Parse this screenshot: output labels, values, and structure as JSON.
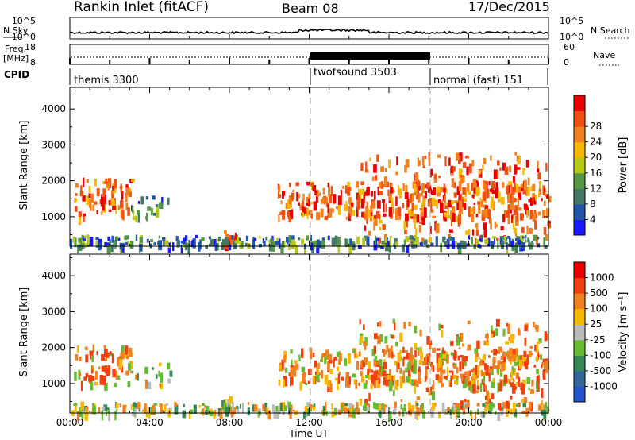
{
  "header": {
    "site": "Rankin Inlet (fitACF)",
    "beam": "Beam 08",
    "date": "17/Dec/2015"
  },
  "strips": {
    "nsky_label": "N.Sky",
    "nsky_ticks": [
      "10^5",
      "10^0"
    ],
    "nsearch_label": "N.Search",
    "nsearch_ticks": [
      "10^5",
      "10^0"
    ],
    "freq_label_1": "Freq.",
    "freq_label_2": "[MHz]",
    "freq_ticks": [
      "18",
      "8"
    ],
    "nave_label": "Nave",
    "nave_ticks": [
      "60",
      "0"
    ],
    "cpid_label": "CPID",
    "cpid_segments": [
      {
        "label": "themis 3300",
        "start_hour": 0,
        "end_hour": 11.9
      },
      {
        "label": "twofsound 3503",
        "start_hour": 11.9,
        "end_hour": 18
      },
      {
        "label": "normal (fast) 151",
        "start_hour": 18,
        "end_hour": 24
      }
    ]
  },
  "chart_data": [
    {
      "type": "heatmap",
      "title": "",
      "xlabel": "Time UT",
      "ylabel": "Slant Range [km]",
      "x_ticks": [
        "00:00",
        "04:00",
        "08:00",
        "12:00",
        "16:00",
        "20:00",
        "00:00"
      ],
      "xlim_hours": [
        0,
        24
      ],
      "y_ticks": [
        1000,
        2000,
        3000,
        4000
      ],
      "ylim": [
        180,
        4600
      ],
      "colorbar": {
        "label": "Power [dB]",
        "ticks": [
          "4",
          "8",
          "12",
          "16",
          "20",
          "24",
          "28"
        ],
        "colors": [
          "#1a1aff",
          "#2255aa",
          "#447766",
          "#559944",
          "#b8c818",
          "#f8b800",
          "#f08020",
          "#f05010",
          "#e80000"
        ]
      },
      "echo_bands": [
        {
          "start_hour": 0.2,
          "end_hour": 3.1,
          "range_km": [
            1000,
            2100
          ],
          "level": "strong"
        },
        {
          "start_hour": 3.0,
          "end_hour": 5.0,
          "range_km": [
            1000,
            1600
          ],
          "level": "weak"
        },
        {
          "start_hour": 7.5,
          "end_hour": 8.3,
          "range_km": [
            300,
            650
          ],
          "level": "strong"
        },
        {
          "start_hour": 10.4,
          "end_hour": 24,
          "range_km": [
            1000,
            2000
          ],
          "level": "strong"
        },
        {
          "start_hour": 14.5,
          "end_hour": 24,
          "range_km": [
            400,
            2800
          ],
          "level": "strong"
        },
        {
          "start_hour": 0,
          "end_hour": 24,
          "range_km": [
            200,
            500
          ],
          "level": "weak"
        }
      ]
    },
    {
      "type": "heatmap",
      "title": "",
      "xlabel": "Time UT",
      "ylabel": "Slant Range [km]",
      "x_ticks": [
        "00:00",
        "04:00",
        "08:00",
        "12:00",
        "16:00",
        "20:00",
        "00:00"
      ],
      "xlim_hours": [
        0,
        24
      ],
      "y_ticks": [
        1000,
        2000,
        3000,
        4000
      ],
      "ylim": [
        180,
        4600
      ],
      "colorbar": {
        "label": "Velocity [m s⁻¹]",
        "ticks": [
          "1000",
          "500",
          "100",
          "25",
          "-25",
          "-100",
          "-500",
          "-1000"
        ],
        "colors": [
          "#2255cc",
          "#336699",
          "#338855",
          "#66bb33",
          "#bbbbbb",
          "#f8b800",
          "#f08020",
          "#f04010",
          "#e80000"
        ]
      },
      "echo_bands": [
        {
          "start_hour": 0.2,
          "end_hour": 3.1,
          "range_km": [
            1000,
            2100
          ],
          "level": "receding"
        },
        {
          "start_hour": 3.0,
          "end_hour": 5.0,
          "range_km": [
            1000,
            1600
          ],
          "level": "approaching"
        },
        {
          "start_hour": 7.5,
          "end_hour": 8.3,
          "range_km": [
            300,
            650
          ],
          "level": "slow"
        },
        {
          "start_hour": 10.4,
          "end_hour": 24,
          "range_km": [
            1000,
            2000
          ],
          "level": "receding"
        },
        {
          "start_hour": 14.5,
          "end_hour": 24,
          "range_km": [
            400,
            2800
          ],
          "level": "receding"
        },
        {
          "start_hour": 0,
          "end_hour": 24,
          "range_km": [
            200,
            500
          ],
          "level": "slow"
        }
      ]
    }
  ]
}
